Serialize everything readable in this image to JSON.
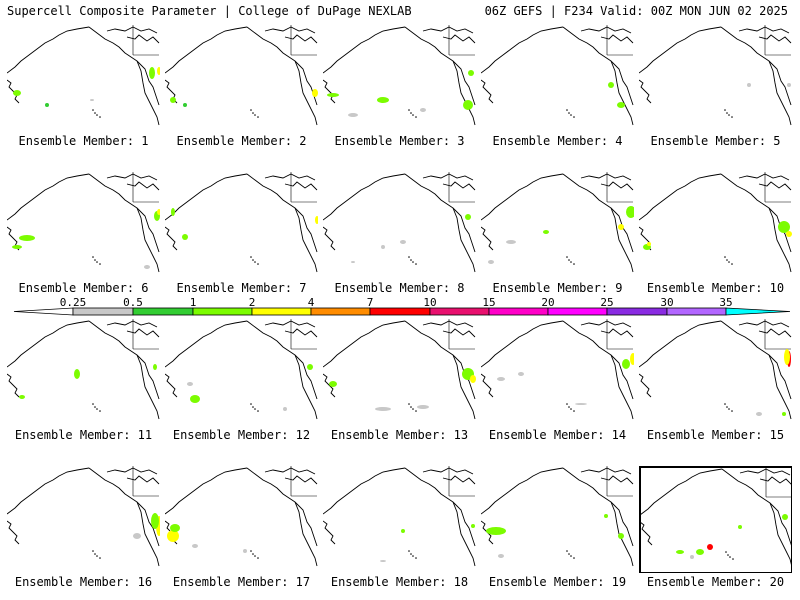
{
  "header": {
    "title": "Supercell Composite Parameter | College of DuPage NEXLAB",
    "run_info": "06Z GEFS | F234 Valid: 00Z MON JUN 02 2025"
  },
  "colorbar": {
    "ticks": [
      "0.25",
      "0.5",
      "1",
      "2",
      "4",
      "7",
      "10",
      "15",
      "20",
      "25",
      "30",
      "35"
    ],
    "colors": [
      "#ffffff",
      "#c8c8c8",
      "#32cd32",
      "#7cfc00",
      "#ffff00",
      "#ff8c00",
      "#ff0000",
      "#e8106e",
      "#ff00c8",
      "#ff00ff",
      "#8a2be2",
      "#b266ff",
      "#00ffff"
    ]
  },
  "members": [
    {
      "label": "Ensemble Member: 1"
    },
    {
      "label": "Ensemble Member: 2"
    },
    {
      "label": "Ensemble Member: 3"
    },
    {
      "label": "Ensemble Member: 4"
    },
    {
      "label": "Ensemble Member: 5"
    },
    {
      "label": "Ensemble Member: 6"
    },
    {
      "label": "Ensemble Member: 7"
    },
    {
      "label": "Ensemble Member: 8"
    },
    {
      "label": "Ensemble Member: 9"
    },
    {
      "label": "Ensemble Member: 10"
    },
    {
      "label": "Ensemble Member: 11"
    },
    {
      "label": "Ensemble Member: 12"
    },
    {
      "label": "Ensemble Member: 13"
    },
    {
      "label": "Ensemble Member: 14"
    },
    {
      "label": "Ensemble Member: 15"
    },
    {
      "label": "Ensemble Member: 16"
    },
    {
      "label": "Ensemble Member: 17"
    },
    {
      "label": "Ensemble Member: 18"
    },
    {
      "label": "Ensemble Member: 19"
    },
    {
      "label": "Ensemble Member: 20"
    }
  ]
}
